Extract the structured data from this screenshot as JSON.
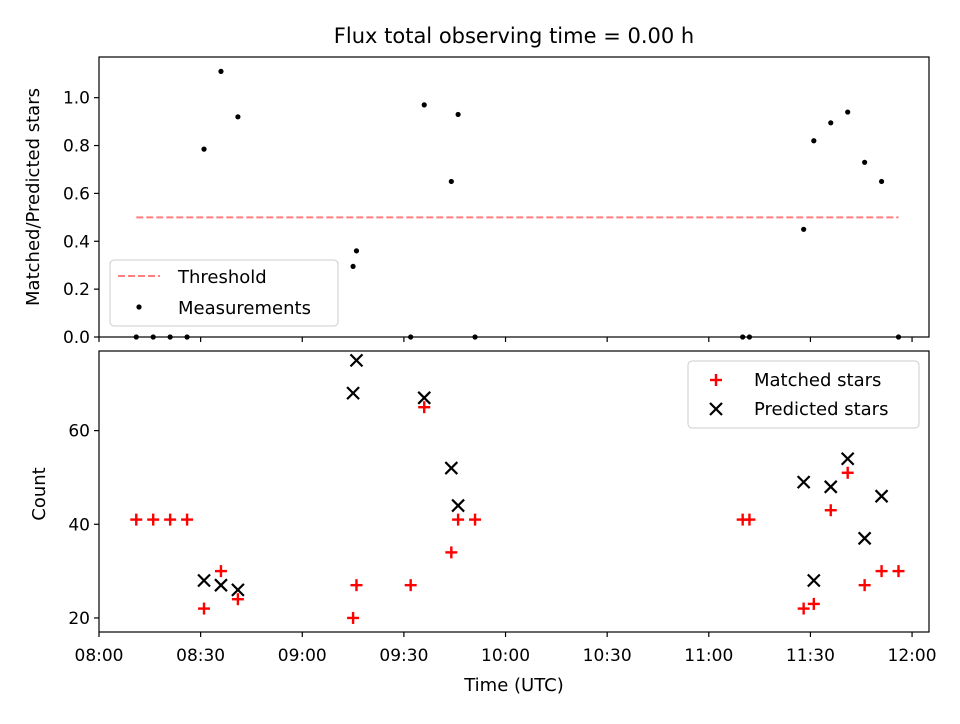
{
  "title": "Flux total observing time = 0.00 h",
  "chart_data": [
    {
      "type": "scatter",
      "panel": "top",
      "title": "Flux total observing time = 0.00 h",
      "xlabel": "",
      "ylabel": "Matched/Predicted stars",
      "xlim": [
        "08:00",
        "12:05"
      ],
      "ylim": [
        0,
        1.17
      ],
      "yticks": [
        0.0,
        0.2,
        0.4,
        0.6,
        0.8,
        1.0
      ],
      "ytick_labels": [
        "0.0",
        "0.2",
        "0.4",
        "0.6",
        "0.8",
        "1.0"
      ],
      "legend_position": "lower-left",
      "threshold": {
        "name": "Threshold",
        "value": 0.5,
        "x_start": "08:11",
        "x_end": "11:56",
        "color": "#ff7f7f",
        "style": "dashed"
      },
      "series": [
        {
          "name": "Measurements",
          "color": "#000000",
          "marker": "dot",
          "points": [
            {
              "x": "08:11",
              "y": 0.0
            },
            {
              "x": "08:16",
              "y": 0.0
            },
            {
              "x": "08:21",
              "y": 0.0
            },
            {
              "x": "08:26",
              "y": 0.0
            },
            {
              "x": "08:31",
              "y": 0.785
            },
            {
              "x": "08:36",
              "y": 1.11
            },
            {
              "x": "08:41",
              "y": 0.92
            },
            {
              "x": "09:15",
              "y": 0.295
            },
            {
              "x": "09:16",
              "y": 0.36
            },
            {
              "x": "09:32",
              "y": 0.0
            },
            {
              "x": "09:36",
              "y": 0.97
            },
            {
              "x": "09:44",
              "y": 0.65
            },
            {
              "x": "09:46",
              "y": 0.93
            },
            {
              "x": "09:51",
              "y": 0.0
            },
            {
              "x": "11:10",
              "y": 0.0
            },
            {
              "x": "11:12",
              "y": 0.0
            },
            {
              "x": "11:28",
              "y": 0.45
            },
            {
              "x": "11:31",
              "y": 0.82
            },
            {
              "x": "11:36",
              "y": 0.895
            },
            {
              "x": "11:41",
              "y": 0.94
            },
            {
              "x": "11:46",
              "y": 0.73
            },
            {
              "x": "11:51",
              "y": 0.65
            },
            {
              "x": "11:56",
              "y": 0.0
            }
          ]
        }
      ]
    },
    {
      "type": "scatter",
      "panel": "bottom",
      "xlabel": "Time (UTC)",
      "ylabel": "Count",
      "xlim": [
        "08:00",
        "12:05"
      ],
      "ylim": [
        17,
        77
      ],
      "xticks": [
        "08:00",
        "08:30",
        "09:00",
        "09:30",
        "10:00",
        "10:30",
        "11:00",
        "11:30",
        "12:00"
      ],
      "yticks": [
        20,
        40,
        60
      ],
      "ytick_labels": [
        "20",
        "40",
        "60"
      ],
      "legend_position": "top-right",
      "series": [
        {
          "name": "Matched stars",
          "color": "#ff0000",
          "marker": "plus",
          "points": [
            {
              "x": "08:11",
              "y": 41
            },
            {
              "x": "08:16",
              "y": 41
            },
            {
              "x": "08:21",
              "y": 41
            },
            {
              "x": "08:26",
              "y": 41
            },
            {
              "x": "08:31",
              "y": 22
            },
            {
              "x": "08:36",
              "y": 30
            },
            {
              "x": "08:41",
              "y": 24
            },
            {
              "x": "09:15",
              "y": 20
            },
            {
              "x": "09:16",
              "y": 27
            },
            {
              "x": "09:32",
              "y": 27
            },
            {
              "x": "09:36",
              "y": 65
            },
            {
              "x": "09:44",
              "y": 34
            },
            {
              "x": "09:46",
              "y": 41
            },
            {
              "x": "09:51",
              "y": 41
            },
            {
              "x": "11:10",
              "y": 41
            },
            {
              "x": "11:12",
              "y": 41
            },
            {
              "x": "11:28",
              "y": 22
            },
            {
              "x": "11:31",
              "y": 23
            },
            {
              "x": "11:36",
              "y": 43
            },
            {
              "x": "11:41",
              "y": 51
            },
            {
              "x": "11:46",
              "y": 27
            },
            {
              "x": "11:51",
              "y": 30
            },
            {
              "x": "11:56",
              "y": 30
            }
          ]
        },
        {
          "name": "Predicted stars",
          "color": "#000000",
          "marker": "x",
          "points": [
            {
              "x": "08:31",
              "y": 28
            },
            {
              "x": "08:36",
              "y": 27
            },
            {
              "x": "08:41",
              "y": 26
            },
            {
              "x": "09:15",
              "y": 68
            },
            {
              "x": "09:16",
              "y": 75
            },
            {
              "x": "09:36",
              "y": 67
            },
            {
              "x": "09:44",
              "y": 52
            },
            {
              "x": "09:46",
              "y": 44
            },
            {
              "x": "11:28",
              "y": 49
            },
            {
              "x": "11:31",
              "y": 28
            },
            {
              "x": "11:36",
              "y": 48
            },
            {
              "x": "11:41",
              "y": 54
            },
            {
              "x": "11:46",
              "y": 37
            },
            {
              "x": "11:51",
              "y": 46
            }
          ]
        }
      ]
    }
  ]
}
